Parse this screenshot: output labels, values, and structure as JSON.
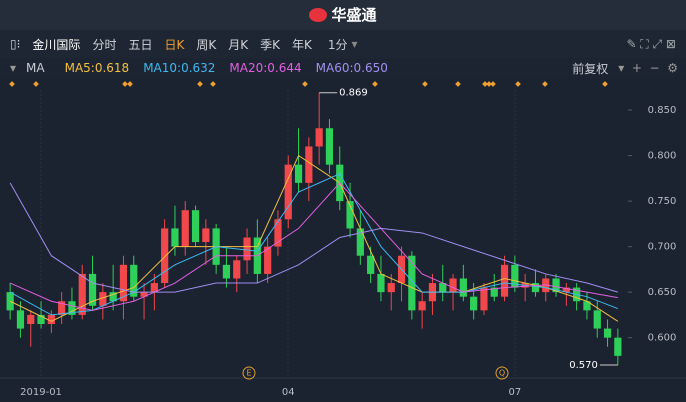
{
  "header": {
    "brand": "华盛通"
  },
  "toolbar": {
    "stock": "金川国际",
    "tabs": [
      "分时",
      "五日",
      "日K",
      "周K",
      "月K",
      "季K",
      "年K"
    ],
    "active_tab": "日K",
    "interval": "1分"
  },
  "legend_bar": {
    "indicator": "MA",
    "adjust": "前复权"
  },
  "events": [
    "E",
    "Q"
  ],
  "chart_data": {
    "type": "candlestick",
    "up_color": "#f0484b",
    "down_color": "#2fd05a",
    "categories": [
      null,
      null,
      null,
      "2019-01",
      null,
      null,
      null,
      null,
      null,
      null,
      null,
      null,
      null,
      null,
      null,
      null,
      null,
      null,
      null,
      null,
      null,
      null,
      null,
      null,
      null,
      null,
      null,
      "04",
      null,
      null,
      null,
      null,
      null,
      null,
      null,
      null,
      null,
      null,
      null,
      null,
      null,
      null,
      null,
      null,
      null,
      null,
      null,
      null,
      null,
      "07",
      null,
      null,
      null,
      null,
      null,
      null,
      null,
      null,
      null,
      null
    ],
    "open": [
      0.65,
      0.63,
      0.615,
      0.625,
      0.615,
      0.625,
      0.64,
      0.625,
      0.67,
      0.635,
      0.65,
      0.64,
      0.68,
      0.645,
      0.65,
      0.66,
      0.72,
      0.7,
      0.74,
      0.705,
      0.72,
      0.68,
      0.665,
      0.685,
      0.71,
      0.67,
      0.7,
      0.73,
      0.79,
      0.77,
      0.81,
      0.83,
      0.79,
      0.75,
      0.72,
      0.69,
      0.67,
      0.65,
      0.66,
      0.69,
      0.63,
      0.64,
      0.66,
      0.65,
      0.665,
      0.645,
      0.63,
      0.655,
      0.645,
      0.68,
      0.655,
      0.66,
      0.65,
      0.665,
      0.65,
      0.655,
      0.64,
      0.63,
      0.61,
      0.6
    ],
    "high": [
      0.66,
      0.64,
      0.63,
      0.64,
      0.63,
      0.65,
      0.655,
      0.68,
      0.69,
      0.66,
      0.68,
      0.69,
      0.69,
      0.66,
      0.67,
      0.73,
      0.745,
      0.75,
      0.745,
      0.73,
      0.725,
      0.7,
      0.69,
      0.72,
      0.73,
      0.71,
      0.74,
      0.8,
      0.83,
      0.82,
      0.869,
      0.84,
      0.81,
      0.77,
      0.74,
      0.7,
      0.69,
      0.67,
      0.7,
      0.695,
      0.65,
      0.67,
      0.68,
      0.67,
      0.68,
      0.66,
      0.66,
      0.67,
      0.69,
      0.69,
      0.67,
      0.675,
      0.67,
      0.67,
      0.66,
      0.66,
      0.65,
      0.64,
      0.62,
      0.61
    ],
    "low": [
      0.62,
      0.6,
      0.59,
      0.61,
      0.605,
      0.615,
      0.62,
      0.62,
      0.63,
      0.62,
      0.63,
      0.62,
      0.64,
      0.62,
      0.63,
      0.655,
      0.69,
      0.69,
      0.7,
      0.68,
      0.67,
      0.655,
      0.65,
      0.67,
      0.66,
      0.66,
      0.69,
      0.72,
      0.76,
      0.75,
      0.79,
      0.78,
      0.74,
      0.71,
      0.68,
      0.66,
      0.64,
      0.63,
      0.64,
      0.62,
      0.61,
      0.625,
      0.64,
      0.63,
      0.64,
      0.62,
      0.625,
      0.64,
      0.64,
      0.65,
      0.64,
      0.645,
      0.64,
      0.645,
      0.635,
      0.63,
      0.62,
      0.6,
      0.59,
      0.57
    ],
    "close": [
      0.63,
      0.61,
      0.625,
      0.615,
      0.625,
      0.64,
      0.625,
      0.67,
      0.635,
      0.65,
      0.64,
      0.68,
      0.645,
      0.65,
      0.66,
      0.72,
      0.7,
      0.74,
      0.705,
      0.72,
      0.68,
      0.665,
      0.685,
      0.71,
      0.67,
      0.7,
      0.73,
      0.79,
      0.77,
      0.81,
      0.83,
      0.79,
      0.75,
      0.72,
      0.69,
      0.67,
      0.65,
      0.66,
      0.69,
      0.63,
      0.64,
      0.66,
      0.65,
      0.665,
      0.645,
      0.63,
      0.655,
      0.645,
      0.68,
      0.655,
      0.66,
      0.65,
      0.665,
      0.65,
      0.655,
      0.64,
      0.63,
      0.61,
      0.6,
      0.58
    ],
    "series": [
      {
        "name": "MA5:0.618",
        "color": "#f0c040",
        "x": [
          0,
          4,
          8,
          12,
          16,
          20,
          24,
          28,
          32,
          36,
          40,
          44,
          48,
          52,
          56,
          59
        ],
        "values": [
          0.64,
          0.618,
          0.64,
          0.655,
          0.7,
          0.7,
          0.7,
          0.8,
          0.77,
          0.67,
          0.65,
          0.65,
          0.665,
          0.655,
          0.64,
          0.618
        ]
      },
      {
        "name": "MA10:0.632",
        "color": "#3fb8f0",
        "x": [
          0,
          4,
          8,
          12,
          16,
          20,
          24,
          28,
          32,
          36,
          40,
          44,
          48,
          52,
          56,
          59
        ],
        "values": [
          0.65,
          0.625,
          0.63,
          0.65,
          0.68,
          0.7,
          0.695,
          0.76,
          0.78,
          0.7,
          0.65,
          0.65,
          0.66,
          0.655,
          0.645,
          0.632
        ]
      },
      {
        "name": "MA20:0.644",
        "color": "#e060e0",
        "x": [
          0,
          4,
          8,
          12,
          16,
          20,
          24,
          28,
          32,
          36,
          40,
          44,
          48,
          52,
          56,
          59
        ],
        "values": [
          0.66,
          0.64,
          0.63,
          0.64,
          0.66,
          0.69,
          0.69,
          0.72,
          0.77,
          0.72,
          0.67,
          0.65,
          0.655,
          0.658,
          0.65,
          0.644
        ]
      },
      {
        "name": "MA60:0.650",
        "color": "#9f8ff0",
        "x": [
          0,
          4,
          8,
          12,
          16,
          20,
          24,
          28,
          32,
          36,
          40,
          44,
          48,
          52,
          56,
          59
        ],
        "values": [
          0.77,
          0.69,
          0.66,
          0.65,
          0.65,
          0.66,
          0.66,
          0.68,
          0.71,
          0.72,
          0.715,
          0.7,
          0.685,
          0.67,
          0.66,
          0.65
        ]
      }
    ],
    "annotations": [
      {
        "value": 0.869,
        "label": "0.869"
      },
      {
        "value": 0.57,
        "label": "0.570"
      }
    ],
    "ylim": [
      0.559,
      0.872
    ],
    "yticks": [
      {
        "value": 0.6,
        "label": "0.600"
      },
      {
        "value": 0.65,
        "label": "0.650"
      },
      {
        "value": 0.7,
        "label": "0.700"
      },
      {
        "value": 0.75,
        "label": "0.750"
      },
      {
        "value": 0.8,
        "label": "0.800"
      },
      {
        "value": 0.85,
        "label": "0.850"
      }
    ],
    "grid": false
  }
}
